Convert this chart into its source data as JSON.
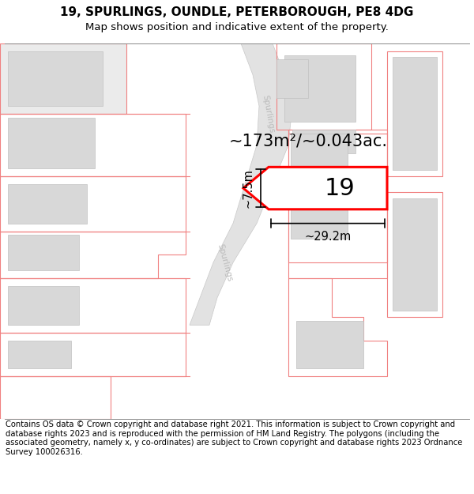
{
  "title_line1": "19, SPURLINGS, OUNDLE, PETERBOROUGH, PE8 4DG",
  "title_line2": "Map shows position and indicative extent of the property.",
  "footer_text": "Contains OS data © Crown copyright and database right 2021. This information is subject to Crown copyright and database rights 2023 and is reproduced with the permission of HM Land Registry. The polygons (including the associated geometry, namely x, y co-ordinates) are subject to Crown copyright and database rights 2023 Ordnance Survey 100026316.",
  "area_label": "~173m²/~0.043ac.",
  "number_label": "19",
  "width_label": "~29.2m",
  "height_label": "~7.5m",
  "map_bg": "#f8f8f8",
  "road_fill": "#e2e2e2",
  "road_edge": "#c8c8c8",
  "bldg_fill": "#d8d8d8",
  "bldg_edge": "#c0c0c0",
  "outline_color": "#f08080",
  "plot_color": "#ff0000",
  "road_label_color": "#bbbbbb",
  "title_fs": 11,
  "sub_fs": 9.5,
  "footer_fs": 7.2,
  "area_fs": 15,
  "num_fs": 22,
  "dim_fs": 10.5
}
